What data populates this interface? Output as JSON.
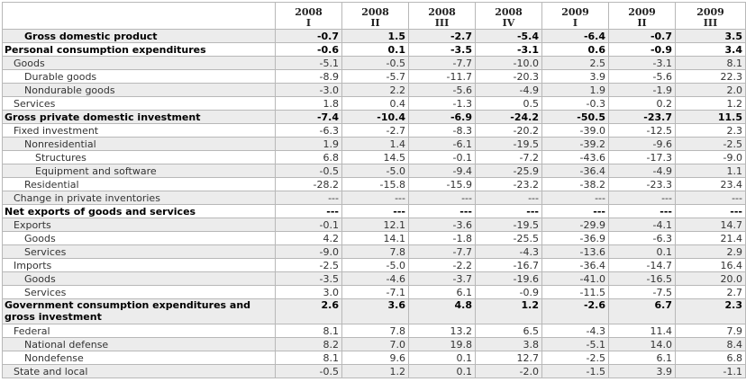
{
  "table": {
    "columns": [
      {
        "year": "2008",
        "quarter": "I"
      },
      {
        "year": "2008",
        "quarter": "II"
      },
      {
        "year": "2008",
        "quarter": "III"
      },
      {
        "year": "2008",
        "quarter": "IV"
      },
      {
        "year": "2009",
        "quarter": "I"
      },
      {
        "year": "2009",
        "quarter": "II"
      },
      {
        "year": "2009",
        "quarter": "III"
      }
    ],
    "rows": [
      {
        "label": "Gross domestic product",
        "indent": 2,
        "bold": true,
        "values": [
          "-0.7",
          "1.5",
          "-2.7",
          "-5.4",
          "-6.4",
          "-0.7",
          "3.5"
        ]
      },
      {
        "label": "Personal consumption expenditures",
        "indent": 0,
        "bold": true,
        "values": [
          "-0.6",
          "0.1",
          "-3.5",
          "-3.1",
          "0.6",
          "-0.9",
          "3.4"
        ]
      },
      {
        "label": "Goods",
        "indent": 1,
        "bold": false,
        "values": [
          "-5.1",
          "-0.5",
          "-7.7",
          "-10.0",
          "2.5",
          "-3.1",
          "8.1"
        ]
      },
      {
        "label": "Durable goods",
        "indent": 2,
        "bold": false,
        "values": [
          "-8.9",
          "-5.7",
          "-11.7",
          "-20.3",
          "3.9",
          "-5.6",
          "22.3"
        ]
      },
      {
        "label": "Nondurable goods",
        "indent": 2,
        "bold": false,
        "values": [
          "-3.0",
          "2.2",
          "-5.6",
          "-4.9",
          "1.9",
          "-1.9",
          "2.0"
        ]
      },
      {
        "label": "Services",
        "indent": 1,
        "bold": false,
        "values": [
          "1.8",
          "0.4",
          "-1.3",
          "0.5",
          "-0.3",
          "0.2",
          "1.2"
        ]
      },
      {
        "label": "Gross private domestic investment",
        "indent": 0,
        "bold": true,
        "values": [
          "-7.4",
          "-10.4",
          "-6.9",
          "-24.2",
          "-50.5",
          "-23.7",
          "11.5"
        ]
      },
      {
        "label": "Fixed investment",
        "indent": 1,
        "bold": false,
        "values": [
          "-6.3",
          "-2.7",
          "-8.3",
          "-20.2",
          "-39.0",
          "-12.5",
          "2.3"
        ]
      },
      {
        "label": "Nonresidential",
        "indent": 2,
        "bold": false,
        "values": [
          "1.9",
          "1.4",
          "-6.1",
          "-19.5",
          "-39.2",
          "-9.6",
          "-2.5"
        ]
      },
      {
        "label": "Structures",
        "indent": 3,
        "bold": false,
        "values": [
          "6.8",
          "14.5",
          "-0.1",
          "-7.2",
          "-43.6",
          "-17.3",
          "-9.0"
        ]
      },
      {
        "label": "Equipment and software",
        "indent": 3,
        "bold": false,
        "values": [
          "-0.5",
          "-5.0",
          "-9.4",
          "-25.9",
          "-36.4",
          "-4.9",
          "1.1"
        ]
      },
      {
        "label": "Residential",
        "indent": 2,
        "bold": false,
        "values": [
          "-28.2",
          "-15.8",
          "-15.9",
          "-23.2",
          "-38.2",
          "-23.3",
          "23.4"
        ]
      },
      {
        "label": "Change in private inventories",
        "indent": 1,
        "bold": false,
        "values": [
          "---",
          "---",
          "---",
          "---",
          "---",
          "---",
          "---"
        ]
      },
      {
        "label": "Net exports of goods and services",
        "indent": 0,
        "bold": true,
        "values": [
          "---",
          "---",
          "---",
          "---",
          "---",
          "---",
          "---"
        ]
      },
      {
        "label": "Exports",
        "indent": 1,
        "bold": false,
        "values": [
          "-0.1",
          "12.1",
          "-3.6",
          "-19.5",
          "-29.9",
          "-4.1",
          "14.7"
        ]
      },
      {
        "label": "Goods",
        "indent": 2,
        "bold": false,
        "values": [
          "4.2",
          "14.1",
          "-1.8",
          "-25.5",
          "-36.9",
          "-6.3",
          "21.4"
        ]
      },
      {
        "label": "Services",
        "indent": 2,
        "bold": false,
        "values": [
          "-9.0",
          "7.8",
          "-7.7",
          "-4.3",
          "-13.6",
          "0.1",
          "2.9"
        ]
      },
      {
        "label": "Imports",
        "indent": 1,
        "bold": false,
        "values": [
          "-2.5",
          "-5.0",
          "-2.2",
          "-16.7",
          "-36.4",
          "-14.7",
          "16.4"
        ]
      },
      {
        "label": "Goods",
        "indent": 2,
        "bold": false,
        "values": [
          "-3.5",
          "-4.6",
          "-3.7",
          "-19.6",
          "-41.0",
          "-16.5",
          "20.0"
        ]
      },
      {
        "label": "Services",
        "indent": 2,
        "bold": false,
        "values": [
          "3.0",
          "-7.1",
          "6.1",
          "-0.9",
          "-11.5",
          "-7.5",
          "2.7"
        ]
      },
      {
        "label": "Government consumption expenditures and gross investment",
        "indent": 0,
        "bold": true,
        "tall": true,
        "values": [
          "2.6",
          "3.6",
          "4.8",
          "1.2",
          "-2.6",
          "6.7",
          "2.3"
        ]
      },
      {
        "label": "Federal",
        "indent": 1,
        "bold": false,
        "values": [
          "8.1",
          "7.8",
          "13.2",
          "6.5",
          "-4.3",
          "11.4",
          "7.9"
        ]
      },
      {
        "label": "National defense",
        "indent": 2,
        "bold": false,
        "values": [
          "8.2",
          "7.0",
          "19.8",
          "3.8",
          "-5.1",
          "14.0",
          "8.4"
        ]
      },
      {
        "label": "Nondefense",
        "indent": 2,
        "bold": false,
        "values": [
          "8.1",
          "9.6",
          "0.1",
          "12.7",
          "-2.5",
          "6.1",
          "6.8"
        ]
      },
      {
        "label": "State and local",
        "indent": 1,
        "bold": false,
        "values": [
          "-0.5",
          "1.2",
          "0.1",
          "-2.0",
          "-1.5",
          "3.9",
          "-1.1"
        ]
      }
    ]
  }
}
